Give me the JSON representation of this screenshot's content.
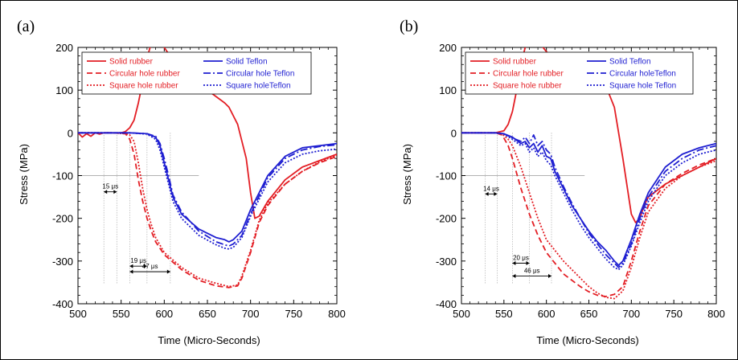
{
  "chart_data": [
    {
      "type": "line",
      "panel_label": "(a)",
      "xlabel": "Time (Micro-Seconds)",
      "ylabel": "Stress (MPa)",
      "xlim": [
        500,
        800
      ],
      "ylim": [
        -400,
        200
      ],
      "xticks": [
        "500",
        "550",
        "600",
        "650",
        "700",
        "750",
        "800"
      ],
      "yticks": [
        "200",
        "100",
        "0",
        "-100",
        "-200",
        "-300",
        "-400"
      ],
      "grid": false,
      "legend_placement": "top",
      "series": [
        {
          "name": "Solid rubber",
          "color": "#e31e24",
          "dash": "solid",
          "x": [
            500,
            505,
            510,
            515,
            520,
            525,
            530,
            535,
            540,
            550,
            555,
            560,
            565,
            570,
            575,
            580,
            585,
            590,
            600,
            620,
            640,
            650,
            660,
            670,
            675,
            685,
            695,
            700,
            705,
            710,
            720,
            740,
            760,
            780,
            800
          ],
          "y": [
            0,
            -10,
            -2,
            -8,
            0,
            -3,
            0,
            0,
            0,
            0,
            3,
            12,
            30,
            70,
            120,
            175,
            210,
            230,
            200,
            140,
            110,
            100,
            85,
            70,
            60,
            20,
            -60,
            -140,
            -200,
            -195,
            -160,
            -110,
            -80,
            -65,
            -50
          ]
        },
        {
          "name": "Circular hole rubber",
          "color": "#e31e24",
          "dash": "7,4",
          "x": [
            500,
            520,
            540,
            555,
            560,
            565,
            570,
            575,
            580,
            585,
            590,
            600,
            620,
            640,
            660,
            675,
            685,
            690,
            700,
            710,
            720,
            740,
            760,
            780,
            800
          ],
          "y": [
            0,
            0,
            0,
            -2,
            -15,
            -50,
            -110,
            -160,
            -200,
            -230,
            -255,
            -285,
            -320,
            -345,
            -358,
            -362,
            -358,
            -340,
            -280,
            -210,
            -170,
            -120,
            -90,
            -70,
            -55
          ]
        },
        {
          "name": "Square hole rubber",
          "color": "#e31e24",
          "dash": "2,2",
          "x": [
            500,
            520,
            540,
            555,
            560,
            565,
            570,
            575,
            580,
            585,
            590,
            600,
            620,
            640,
            660,
            675,
            685,
            690,
            700,
            710,
            720,
            740,
            760,
            780,
            800
          ],
          "y": [
            0,
            0,
            0,
            -2,
            -5,
            -20,
            -70,
            -130,
            -180,
            -215,
            -245,
            -280,
            -315,
            -340,
            -352,
            -360,
            -356,
            -335,
            -275,
            -205,
            -165,
            -120,
            -90,
            -68,
            -52
          ]
        },
        {
          "name": "Solid Teflon",
          "color": "#1f1fd1",
          "dash": "solid",
          "x": [
            500,
            520,
            540,
            560,
            580,
            590,
            595,
            600,
            605,
            610,
            620,
            640,
            660,
            670,
            675,
            680,
            690,
            700,
            720,
            740,
            760,
            780,
            800
          ],
          "y": [
            0,
            0,
            0,
            0,
            -2,
            -10,
            -30,
            -70,
            -110,
            -150,
            -190,
            -225,
            -245,
            -250,
            -255,
            -250,
            -230,
            -180,
            -100,
            -55,
            -35,
            -30,
            -25
          ]
        },
        {
          "name": "Circular hole Teflon",
          "color": "#1f1fd1",
          "dash": "9,3,2,3",
          "x": [
            500,
            520,
            540,
            560,
            580,
            590,
            595,
            600,
            605,
            610,
            620,
            640,
            660,
            670,
            675,
            680,
            690,
            700,
            720,
            740,
            760,
            780,
            800
          ],
          "y": [
            0,
            0,
            0,
            0,
            -2,
            -8,
            -25,
            -60,
            -100,
            -145,
            -185,
            -230,
            -255,
            -262,
            -265,
            -260,
            -240,
            -190,
            -105,
            -60,
            -40,
            -32,
            -28
          ]
        },
        {
          "name": "Square holeTeflon",
          "color": "#1f1fd1",
          "dash": "2,2",
          "x": [
            500,
            520,
            540,
            560,
            580,
            590,
            595,
            600,
            605,
            610,
            620,
            640,
            660,
            670,
            675,
            680,
            690,
            700,
            720,
            740,
            760,
            780,
            800
          ],
          "y": [
            0,
            0,
            0,
            0,
            -3,
            -15,
            -40,
            -80,
            -120,
            -160,
            -200,
            -240,
            -262,
            -270,
            -272,
            -268,
            -245,
            -195,
            -115,
            -70,
            -50,
            -42,
            -38
          ]
        }
      ],
      "annotations": [
        "15 μs",
        "19 μs",
        "47 μs"
      ]
    },
    {
      "type": "line",
      "panel_label": "(b)",
      "xlabel": "Time (Micro-Seconds)",
      "ylabel": "Stress (MPa)",
      "xlim": [
        500,
        800
      ],
      "ylim": [
        -400,
        200
      ],
      "xticks": [
        "500",
        "550",
        "600",
        "650",
        "700",
        "750",
        "800"
      ],
      "yticks": [
        "200",
        "100",
        "0",
        "-100",
        "-200",
        "-300",
        "-400"
      ],
      "grid": false,
      "legend_placement": "top",
      "series": [
        {
          "name": "Solid rubber",
          "color": "#e31e24",
          "dash": "solid",
          "x": [
            500,
            510,
            520,
            530,
            540,
            550,
            555,
            560,
            565,
            570,
            575,
            580,
            585,
            590,
            600,
            620,
            640,
            650,
            660,
            670,
            680,
            690,
            700,
            705,
            710,
            715,
            720,
            740,
            760,
            780,
            800
          ],
          "y": [
            0,
            0,
            0,
            0,
            0,
            5,
            20,
            50,
            100,
            160,
            200,
            225,
            228,
            215,
            190,
            150,
            130,
            125,
            118,
            110,
            60,
            -60,
            -190,
            -210,
            -200,
            -170,
            -150,
            -120,
            -100,
            -80,
            -60
          ]
        },
        {
          "name": "Circular hole rubber",
          "color": "#e31e24",
          "dash": "7,4",
          "x": [
            500,
            520,
            540,
            548,
            555,
            560,
            570,
            580,
            590,
            600,
            620,
            640,
            650,
            660,
            670,
            680,
            690,
            700,
            710,
            720,
            740,
            760,
            780,
            800
          ],
          "y": [
            0,
            0,
            0,
            -5,
            -30,
            -60,
            -130,
            -190,
            -240,
            -280,
            -330,
            -360,
            -372,
            -380,
            -383,
            -378,
            -360,
            -300,
            -230,
            -170,
            -120,
            -95,
            -75,
            -60
          ]
        },
        {
          "name": "Square hole rubber",
          "color": "#e31e24",
          "dash": "2,2",
          "x": [
            500,
            520,
            540,
            548,
            555,
            560,
            570,
            580,
            590,
            600,
            620,
            640,
            650,
            660,
            670,
            680,
            690,
            700,
            710,
            720,
            740,
            760,
            780,
            800
          ],
          "y": [
            0,
            0,
            0,
            -3,
            -15,
            -30,
            -80,
            -140,
            -200,
            -250,
            -300,
            -340,
            -360,
            -375,
            -385,
            -388,
            -370,
            -315,
            -245,
            -185,
            -130,
            -100,
            -80,
            -65
          ]
        },
        {
          "name": "Solid Teflon",
          "color": "#1f1fd1",
          "dash": "solid",
          "x": [
            500,
            520,
            540,
            550,
            560,
            570,
            575,
            580,
            585,
            590,
            595,
            600,
            605,
            610,
            620,
            630,
            640,
            650,
            660,
            670,
            680,
            685,
            690,
            700,
            710,
            720,
            740,
            760,
            780,
            800
          ],
          "y": [
            0,
            0,
            0,
            -2,
            -10,
            -25,
            -20,
            -35,
            -25,
            -45,
            -30,
            -55,
            -60,
            -90,
            -130,
            -170,
            -200,
            -230,
            -255,
            -275,
            -300,
            -310,
            -300,
            -250,
            -190,
            -140,
            -80,
            -50,
            -35,
            -25
          ]
        },
        {
          "name": "Circular holeTeflon",
          "color": "#1f1fd1",
          "dash": "9,3,2,3",
          "x": [
            500,
            520,
            540,
            550,
            560,
            570,
            575,
            580,
            585,
            590,
            595,
            600,
            605,
            610,
            620,
            630,
            640,
            650,
            660,
            670,
            680,
            685,
            690,
            700,
            710,
            720,
            740,
            760,
            780,
            800
          ],
          "y": [
            0,
            0,
            0,
            -2,
            -12,
            -20,
            -10,
            -25,
            -5,
            -30,
            -20,
            -40,
            -50,
            -80,
            -125,
            -165,
            -200,
            -235,
            -260,
            -285,
            -305,
            -315,
            -305,
            -260,
            -200,
            -150,
            -90,
            -60,
            -40,
            -30
          ]
        },
        {
          "name": "Square hole Teflon",
          "color": "#1f1fd1",
          "dash": "2,2",
          "x": [
            500,
            520,
            540,
            550,
            560,
            570,
            575,
            580,
            585,
            590,
            595,
            600,
            605,
            610,
            620,
            630,
            640,
            650,
            660,
            670,
            680,
            685,
            690,
            700,
            710,
            720,
            740,
            760,
            780,
            800
          ],
          "y": [
            0,
            0,
            0,
            -3,
            -15,
            -30,
            -25,
            -45,
            -35,
            -55,
            -45,
            -65,
            -75,
            -100,
            -140,
            -180,
            -215,
            -245,
            -270,
            -295,
            -315,
            -320,
            -310,
            -265,
            -210,
            -160,
            -100,
            -70,
            -50,
            -40
          ]
        }
      ],
      "annotations": [
        "14 μs",
        "20 μs",
        "46 μs"
      ]
    }
  ]
}
